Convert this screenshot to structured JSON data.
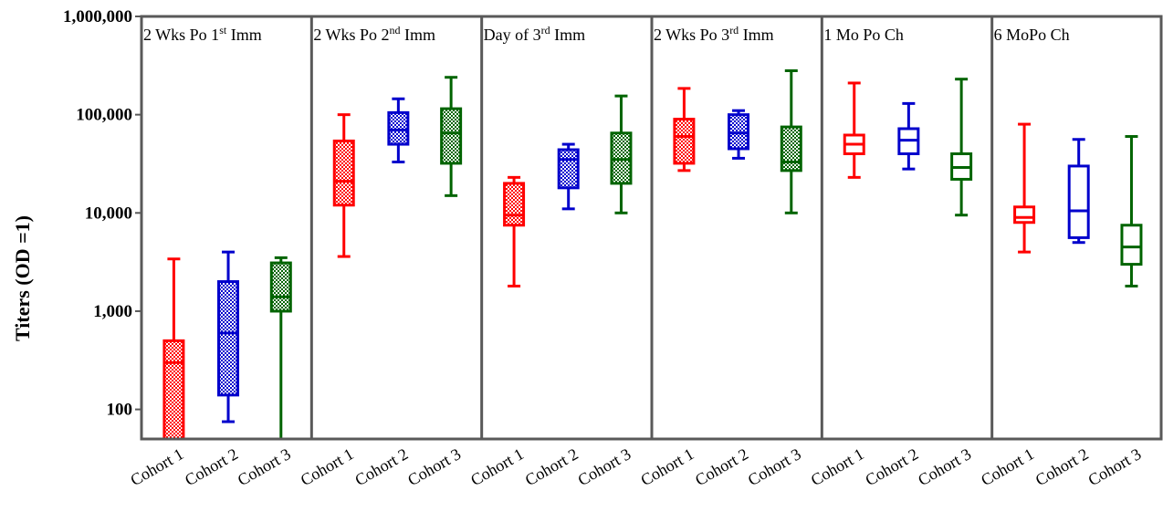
{
  "chart_data": {
    "type": "boxplot",
    "y_scale": "log",
    "ylim": [
      50,
      1000000
    ],
    "ylabel": "Titers  (OD =1)",
    "yticks": [
      {
        "value": 100,
        "label": "100"
      },
      {
        "value": 1000,
        "label": "1,000"
      },
      {
        "value": 10000,
        "label": "10,000"
      },
      {
        "value": 100000,
        "label": "100,000"
      },
      {
        "value": 1000000,
        "label": "1,000,000"
      }
    ],
    "categories": [
      "Cohort 1",
      "Cohort 2",
      "Cohort 3"
    ],
    "colors": {
      "Cohort 1": "#ff0000",
      "Cohort 2": "#0000cc",
      "Cohort 3": "#006400"
    },
    "frame_color": "#595959",
    "panels": [
      {
        "title": {
          "pre": "2  Wks Po 1",
          "sup": "st",
          "post": "  Imm"
        },
        "pattern": "hatched",
        "boxes": [
          {
            "min": 50,
            "q1": 50,
            "median": 300,
            "q3": 500,
            "max": 3400
          },
          {
            "min": 75,
            "q1": 140,
            "median": 600,
            "q3": 2000,
            "max": 4000
          },
          {
            "min": 50,
            "q1": 1000,
            "median": 1400,
            "q3": 3100,
            "max": 3500
          }
        ]
      },
      {
        "title": {
          "pre": "2  Wks Po 2",
          "sup": "nd",
          "post": "  Imm"
        },
        "pattern": "hatched",
        "boxes": [
          {
            "min": 3600,
            "q1": 12000,
            "median": 21000,
            "q3": 54000,
            "max": 100000
          },
          {
            "min": 33000,
            "q1": 50000,
            "median": 70000,
            "q3": 105000,
            "max": 145000
          },
          {
            "min": 15000,
            "q1": 32000,
            "median": 65000,
            "q3": 115000,
            "max": 240000
          }
        ]
      },
      {
        "title": {
          "pre": "Day of 3",
          "sup": "rd",
          "post": "  Imm"
        },
        "pattern": "hatched",
        "boxes": [
          {
            "min": 1800,
            "q1": 7500,
            "median": 9500,
            "q3": 20000,
            "max": 23000
          },
          {
            "min": 11000,
            "q1": 18000,
            "median": 35000,
            "q3": 44000,
            "max": 50000
          },
          {
            "min": 10000,
            "q1": 20000,
            "median": 35000,
            "q3": 65000,
            "max": 155000
          }
        ]
      },
      {
        "title": {
          "pre": "2  Wks Po 3",
          "sup": "rd",
          "post": "  Imm"
        },
        "pattern": "hatched",
        "boxes": [
          {
            "min": 27000,
            "q1": 32000,
            "median": 60000,
            "q3": 90000,
            "max": 185000
          },
          {
            "min": 36000,
            "q1": 45000,
            "median": 65000,
            "q3": 100000,
            "max": 110000
          },
          {
            "min": 10000,
            "q1": 27000,
            "median": 33000,
            "q3": 75000,
            "max": 280000
          }
        ]
      },
      {
        "title": {
          "pre": "1 Mo Po Ch",
          "sup": "",
          "post": ""
        },
        "pattern": "open",
        "boxes": [
          {
            "min": 23000,
            "q1": 40000,
            "median": 50000,
            "q3": 62000,
            "max": 210000
          },
          {
            "min": 28000,
            "q1": 40000,
            "median": 55000,
            "q3": 72000,
            "max": 130000
          },
          {
            "min": 9500,
            "q1": 22000,
            "median": 29000,
            "q3": 40000,
            "max": 230000
          }
        ]
      },
      {
        "title": {
          "pre": "6  MoPo Ch",
          "sup": "",
          "post": ""
        },
        "pattern": "open",
        "boxes": [
          {
            "min": 4000,
            "q1": 8000,
            "median": 9000,
            "q3": 11500,
            "max": 80000
          },
          {
            "min": 5000,
            "q1": 5600,
            "median": 10500,
            "q3": 30000,
            "max": 56000
          },
          {
            "min": 1800,
            "q1": 3000,
            "median": 4500,
            "q3": 7500,
            "max": 60000
          }
        ]
      }
    ]
  }
}
